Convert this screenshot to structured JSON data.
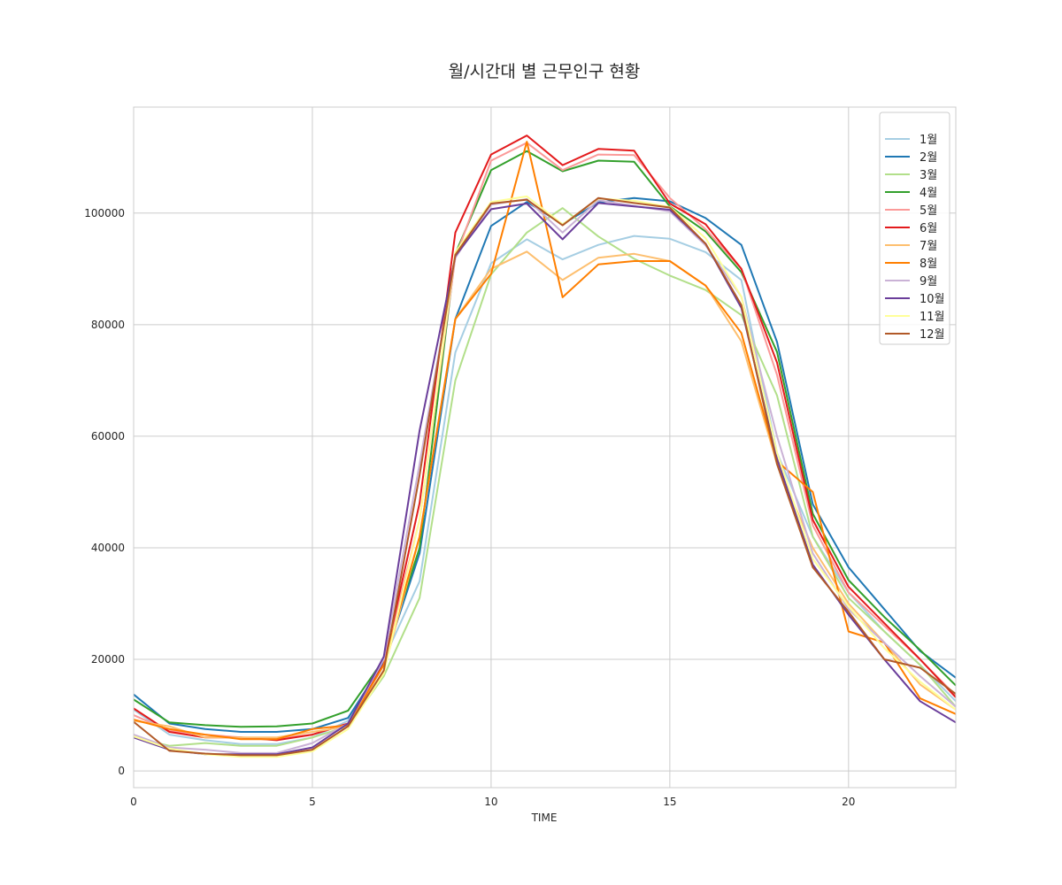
{
  "chart_data": {
    "type": "line",
    "title": "월/시간대 별 근무인구 현황",
    "xlabel": "TIME",
    "ylabel": "",
    "xlim": [
      0,
      23
    ],
    "ylim": [
      -3000,
      119000
    ],
    "xticks": [
      0,
      5,
      10,
      15,
      20
    ],
    "yticks": [
      0,
      20000,
      40000,
      60000,
      80000,
      100000
    ],
    "grid": true,
    "legend_position": "top-right",
    "x": [
      0,
      1,
      2,
      3,
      4,
      5,
      6,
      7,
      8,
      9,
      10,
      11,
      12,
      13,
      14,
      15,
      16,
      17,
      18,
      19,
      20,
      21,
      22,
      23
    ],
    "series": [
      {
        "name": "1월",
        "color": "#a6cee3",
        "values": [
          11000,
          6500,
          5500,
          4800,
          4800,
          6000,
          9000,
          20000,
          34000,
          75000,
          91000,
          95300,
          91700,
          94300,
          95900,
          95400,
          93000,
          88000,
          57000,
          42000,
          32000,
          25000,
          19000,
          12500
        ]
      },
      {
        "name": "2월",
        "color": "#1f78b4",
        "values": [
          13700,
          8500,
          7500,
          7000,
          7000,
          7500,
          9500,
          19500,
          39000,
          81000,
          97700,
          102000,
          98000,
          101900,
          102700,
          102100,
          99100,
          94300,
          76900,
          47800,
          36500,
          29000,
          21500,
          16700
        ]
      },
      {
        "name": "3월",
        "color": "#b2df8a",
        "values": [
          6000,
          4500,
          5000,
          4500,
          4500,
          6000,
          8000,
          17000,
          31000,
          70000,
          89000,
          96500,
          100900,
          95800,
          91800,
          88800,
          86200,
          81700,
          67300,
          42000,
          31000,
          25000,
          19000,
          11500
        ]
      },
      {
        "name": "4월",
        "color": "#33a02c",
        "values": [
          12800,
          8700,
          8200,
          7900,
          8000,
          8500,
          10800,
          20000,
          40000,
          92700,
          107700,
          111100,
          107500,
          109400,
          109200,
          101200,
          96700,
          89400,
          75100,
          46100,
          34200,
          27600,
          21700,
          15300
        ]
      },
      {
        "name": "5월",
        "color": "#fb9a99",
        "values": [
          10000,
          7200,
          6500,
          6000,
          5800,
          6500,
          8500,
          19000,
          45000,
          92000,
          109400,
          112600,
          107700,
          110500,
          110400,
          102700,
          97100,
          90000,
          71000,
          44000,
          32000,
          26000,
          20000,
          13500
        ]
      },
      {
        "name": "6월",
        "color": "#e31a1c",
        "values": [
          11200,
          7000,
          6000,
          6000,
          5500,
          6500,
          8500,
          19200,
          48000,
          96500,
          110500,
          113900,
          108600,
          111500,
          111200,
          101700,
          98000,
          90000,
          73200,
          45000,
          33000,
          26500,
          20000,
          13200
        ]
      },
      {
        "name": "7월",
        "color": "#fdbf6f",
        "values": [
          9000,
          8000,
          6000,
          6000,
          6000,
          7000,
          8000,
          18000,
          42000,
          81000,
          90000,
          93100,
          88000,
          92000,
          92700,
          91400,
          87000,
          77000,
          55000,
          40000,
          30000,
          23000,
          15500,
          11000
        ]
      },
      {
        "name": "8월",
        "color": "#ff7f00",
        "values": [
          9200,
          7500,
          6500,
          5700,
          5700,
          7500,
          8200,
          19000,
          42000,
          81000,
          89100,
          112800,
          84900,
          90800,
          91400,
          91400,
          87000,
          78500,
          55500,
          50000,
          25000,
          23000,
          13000,
          10200
        ]
      },
      {
        "name": "9월",
        "color": "#cab2d6",
        "values": [
          6500,
          4200,
          3800,
          3200,
          3200,
          5000,
          8500,
          20000,
          55000,
          92000,
          101500,
          102500,
          96500,
          102300,
          101300,
          100300,
          94200,
          85000,
          60000,
          39000,
          29000,
          23000,
          17000,
          11500
        ]
      },
      {
        "name": "10월",
        "color": "#6a3d9a",
        "values": [
          6000,
          3800,
          3000,
          3000,
          3000,
          4200,
          8500,
          20500,
          61000,
          92300,
          100700,
          101700,
          95300,
          101800,
          101200,
          100600,
          94500,
          83000,
          56000,
          37000,
          28000,
          20000,
          12500,
          8700
        ]
      },
      {
        "name": "11월",
        "color": "#ffff99",
        "values": [
          6200,
          4000,
          3000,
          2500,
          2500,
          3500,
          7500,
          17500,
          45000,
          93000,
          102000,
          103000,
          98000,
          102600,
          102200,
          101100,
          95500,
          85000,
          57000,
          38000,
          29500,
          22000,
          16000,
          11000
        ]
      },
      {
        "name": "12월",
        "color": "#b15928",
        "values": [
          8800,
          3600,
          3100,
          2800,
          2800,
          3800,
          8000,
          18000,
          53000,
          92500,
          101700,
          102400,
          97800,
          102700,
          101800,
          101000,
          94500,
          83500,
          55000,
          36500,
          28500,
          20000,
          18500,
          13800
        ]
      }
    ]
  }
}
